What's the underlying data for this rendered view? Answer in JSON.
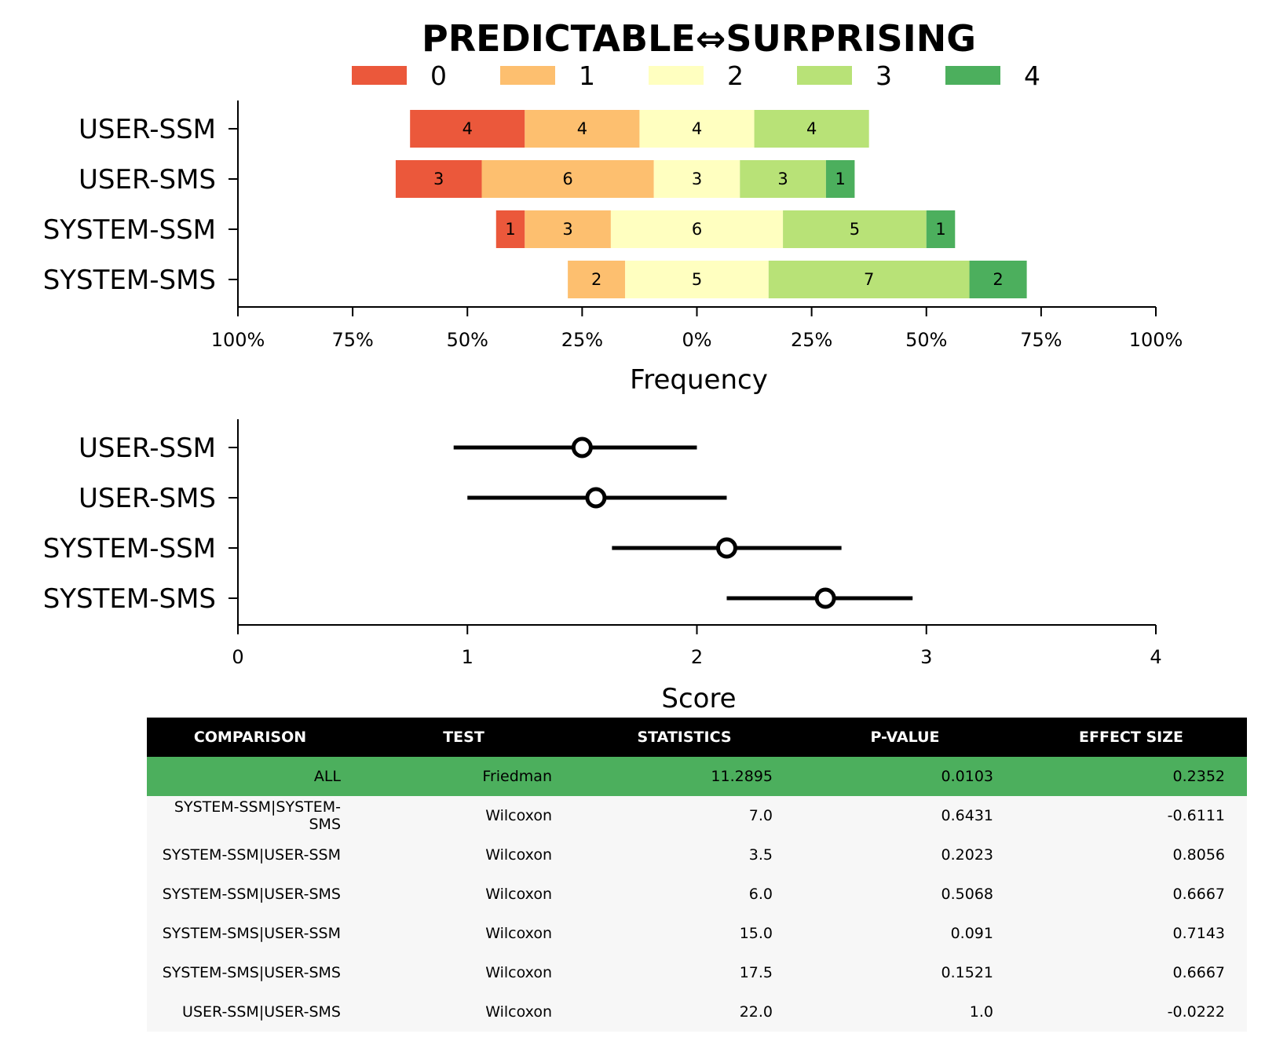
{
  "chart_data": [
    {
      "type": "bar",
      "subtype": "diverging-stacked",
      "title": "PREDICTABLE⇔SURPRISING",
      "xlabel": "Frequency",
      "ylabel": "",
      "xlim": [
        -100,
        100
      ],
      "x_ticks": [
        "100%",
        "75%",
        "50%",
        "25%",
        "0%",
        "25%",
        "50%",
        "75%",
        "100%"
      ],
      "legend": {
        "position": "top",
        "entries": [
          "0",
          "1",
          "2",
          "3",
          "4"
        ]
      },
      "colors": [
        "#eb583b",
        "#fdbf6f",
        "#ffffc0",
        "#b8e277",
        "#4caf5d"
      ],
      "categories": [
        "USER-SSM",
        "USER-SMS",
        "SYSTEM-SSM",
        "SYSTEM-SMS"
      ],
      "series": [
        {
          "name": "0",
          "values": [
            4,
            3,
            1,
            0
          ]
        },
        {
          "name": "1",
          "values": [
            4,
            6,
            3,
            2
          ]
        },
        {
          "name": "2",
          "values": [
            4,
            3,
            6,
            5
          ]
        },
        {
          "name": "3",
          "values": [
            4,
            3,
            5,
            7
          ]
        },
        {
          "name": "4",
          "values": [
            0,
            1,
            1,
            2
          ]
        }
      ],
      "totals": [
        16,
        16,
        16,
        16
      ],
      "grid": false
    },
    {
      "type": "scatter",
      "subtype": "point-with-interval",
      "xlabel": "Score",
      "ylabel": "",
      "xlim": [
        0,
        4
      ],
      "x_ticks": [
        "0",
        "1",
        "2",
        "3",
        "4"
      ],
      "categories": [
        "USER-SSM",
        "USER-SMS",
        "SYSTEM-SSM",
        "SYSTEM-SMS"
      ],
      "means": [
        1.5,
        1.56,
        2.13,
        2.56
      ],
      "lower": [
        0.94,
        1.0,
        1.63,
        2.13
      ],
      "upper": [
        2.0,
        2.13,
        2.63,
        2.94
      ],
      "grid": false
    },
    {
      "type": "table",
      "columns": [
        "COMPARISON",
        "TEST",
        "STATISTICS",
        "P-VALUE",
        "EFFECT SIZE"
      ],
      "rows": [
        [
          "ALL",
          "Friedman",
          "11.2895",
          "0.0103",
          "0.2352"
        ],
        [
          "SYSTEM-SSM|SYSTEM-SMS",
          "Wilcoxon",
          "7.0",
          "0.6431",
          "-0.6111"
        ],
        [
          "SYSTEM-SSM|USER-SSM",
          "Wilcoxon",
          "3.5",
          "0.2023",
          "0.8056"
        ],
        [
          "SYSTEM-SSM|USER-SMS",
          "Wilcoxon",
          "6.0",
          "0.5068",
          "0.6667"
        ],
        [
          "SYSTEM-SMS|USER-SSM",
          "Wilcoxon",
          "15.0",
          "0.091",
          "0.7143"
        ],
        [
          "SYSTEM-SMS|USER-SMS",
          "Wilcoxon",
          "17.5",
          "0.1521",
          "0.6667"
        ],
        [
          "USER-SSM|USER-SMS",
          "Wilcoxon",
          "22.0",
          "1.0",
          "-0.0222"
        ]
      ],
      "highlight_color": "#4caf5d",
      "header_color": "#000000"
    }
  ]
}
